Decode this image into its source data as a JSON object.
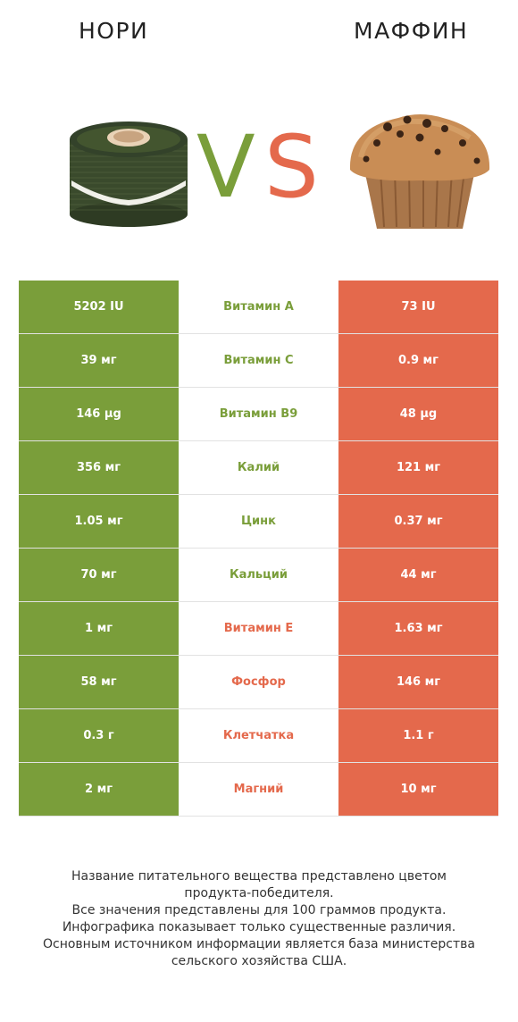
{
  "header": {
    "left_title": "НОРИ",
    "right_title": "МАФФИН"
  },
  "vs_text": {
    "v": "V",
    "s": "S"
  },
  "colors": {
    "left_winner": "#7a9e3a",
    "right_winner": "#e4694c"
  },
  "rows": [
    {
      "left": "5202 IU",
      "name": "Витамин A",
      "right": "73 IU",
      "winner": "left"
    },
    {
      "left": "39 мг",
      "name": "Витамин C",
      "right": "0.9 мг",
      "winner": "left"
    },
    {
      "left": "146 µg",
      "name": "Витамин B9",
      "right": "48 µg",
      "winner": "left"
    },
    {
      "left": "356 мг",
      "name": "Калий",
      "right": "121 мг",
      "winner": "left"
    },
    {
      "left": "1.05 мг",
      "name": "Цинк",
      "right": "0.37 мг",
      "winner": "left"
    },
    {
      "left": "70 мг",
      "name": "Кальций",
      "right": "44 мг",
      "winner": "left"
    },
    {
      "left": "1 мг",
      "name": "Витамин E",
      "right": "1.63 мг",
      "winner": "right"
    },
    {
      "left": "58 мг",
      "name": "Фосфор",
      "right": "146 мг",
      "winner": "right"
    },
    {
      "left": "0.3 г",
      "name": "Клетчатка",
      "right": "1.1 г",
      "winner": "right"
    },
    {
      "left": "2 мг",
      "name": "Магний",
      "right": "10 мг",
      "winner": "right"
    }
  ],
  "footer": {
    "lines": [
      "Название питательного вещества представлено цветом",
      "продукта-победителя.",
      "Все значения представлены для 100 граммов продукта.",
      "Инфографика показывает только существенные различия.",
      "Основным источником информации является база министерства",
      "сельского хозяйства США."
    ]
  }
}
